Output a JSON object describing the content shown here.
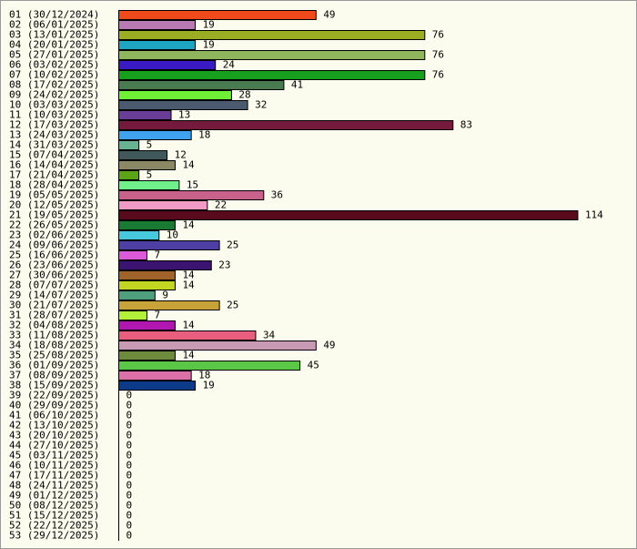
{
  "chart_data": {
    "type": "bar",
    "orientation": "horizontal",
    "categories": [
      "01 (30/12/2024)",
      "02 (06/01/2025)",
      "03 (13/01/2025)",
      "04 (20/01/2025)",
      "05 (27/01/2025)",
      "06 (03/02/2025)",
      "07 (10/02/2025)",
      "08 (17/02/2025)",
      "09 (24/02/2025)",
      "10 (03/03/2025)",
      "11 (10/03/2025)",
      "12 (17/03/2025)",
      "13 (24/03/2025)",
      "14 (31/03/2025)",
      "15 (07/04/2025)",
      "16 (14/04/2025)",
      "17 (21/04/2025)",
      "18 (28/04/2025)",
      "19 (05/05/2025)",
      "20 (12/05/2025)",
      "21 (19/05/2025)",
      "22 (26/05/2025)",
      "23 (02/06/2025)",
      "24 (09/06/2025)",
      "25 (16/06/2025)",
      "26 (23/06/2025)",
      "27 (30/06/2025)",
      "28 (07/07/2025)",
      "29 (14/07/2025)",
      "30 (21/07/2025)",
      "31 (28/07/2025)",
      "32 (04/08/2025)",
      "33 (11/08/2025)",
      "34 (18/08/2025)",
      "35 (25/08/2025)",
      "36 (01/09/2025)",
      "37 (08/09/2025)",
      "38 (15/09/2025)",
      "39 (22/09/2025)",
      "40 (29/09/2025)",
      "41 (06/10/2025)",
      "42 (13/10/2025)",
      "43 (20/10/2025)",
      "44 (27/10/2025)",
      "45 (03/11/2025)",
      "46 (10/11/2025)",
      "47 (17/11/2025)",
      "48 (24/11/2025)",
      "49 (01/12/2025)",
      "50 (08/12/2025)",
      "51 (15/12/2025)",
      "52 (22/12/2025)",
      "53 (29/12/2025)"
    ],
    "values": [
      49,
      19,
      76,
      19,
      76,
      24,
      76,
      41,
      28,
      32,
      13,
      83,
      18,
      5,
      12,
      14,
      5,
      15,
      36,
      22,
      114,
      14,
      10,
      25,
      7,
      23,
      14,
      14,
      9,
      25,
      7,
      14,
      34,
      49,
      14,
      45,
      18,
      19,
      0,
      0,
      0,
      0,
      0,
      0,
      0,
      0,
      0,
      0,
      0,
      0,
      0,
      0,
      0
    ],
    "colors": [
      "#f04a1c",
      "#b97ab4",
      "#9aad23",
      "#1ea5c2",
      "#8fb55d",
      "#3a1ac2",
      "#16a01d",
      "#4a7a4f",
      "#6ff036",
      "#4b5a6e",
      "#6a3d96",
      "#751a3d",
      "#3fa3f0",
      "#6ab392",
      "#41585a",
      "#8b8866",
      "#5aa416",
      "#6ff08a",
      "#c9628a",
      "#f09ac6",
      "#5a0a1d",
      "#197a33",
      "#48c8dd",
      "#4d3fa4",
      "#dc5ad9",
      "#3a1470",
      "#a0642a",
      "#c2d622",
      "#4f9e7e",
      "#c8a33a",
      "#b3f03a",
      "#b117b0",
      "#e95e7e",
      "#c89ab4",
      "#6e8a3d",
      "#5ac846",
      "#dd70a8",
      "#0e3a8a",
      "#000000",
      "#000000",
      "#000000",
      "#000000",
      "#000000",
      "#000000",
      "#000000",
      "#000000",
      "#000000",
      "#000000",
      "#000000",
      "#000000",
      "#000000",
      "#000000",
      "#000000"
    ],
    "xlim": [
      0,
      114
    ],
    "grid": false,
    "legend": "none",
    "data_labels": true
  }
}
